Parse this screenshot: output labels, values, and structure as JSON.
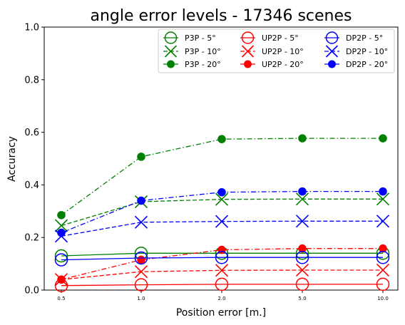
{
  "colors": {
    "P3P": "#008000",
    "UP2P": "#ff0000",
    "DP2P": "#0000ff",
    "axis": "#000000",
    "background": "#ffffff"
  },
  "chart_data": {
    "type": "line",
    "title": "angle error levels - 17346 scenes",
    "xlabel": "Position error [m.]",
    "ylabel": "Accuracy",
    "x": [
      "0.5",
      "1.0",
      "2.0",
      "5.0",
      "10.0"
    ],
    "x_scale": "categorical (evenly spaced)",
    "ylim": [
      0.0,
      1.0
    ],
    "yticks": [
      "0.0",
      "0.2",
      "0.4",
      "0.6",
      "0.8",
      "1.0"
    ],
    "grid": false,
    "legend": {
      "placement": "top-right",
      "columns": 3
    },
    "series": [
      {
        "name": "P3P - 5°",
        "method": "P3P",
        "angle": "5°",
        "color": "#008000",
        "linestyle": "solid",
        "marker": "open-circle",
        "values": [
          0.13,
          0.14,
          0.14,
          0.14,
          0.14
        ]
      },
      {
        "name": "P3P - 10°",
        "method": "P3P",
        "angle": "10°",
        "color": "#008000",
        "linestyle": "dashed",
        "marker": "x",
        "values": [
          0.245,
          0.336,
          0.345,
          0.346,
          0.346
        ]
      },
      {
        "name": "P3P - 20°",
        "method": "P3P",
        "angle": "20°",
        "color": "#008000",
        "linestyle": "dash-dot",
        "marker": "filled-circle",
        "values": [
          0.285,
          0.507,
          0.574,
          0.577,
          0.577
        ]
      },
      {
        "name": "UP2P - 5°",
        "method": "UP2P",
        "angle": "5°",
        "color": "#ff0000",
        "linestyle": "solid",
        "marker": "open-circle",
        "values": [
          0.017,
          0.02,
          0.022,
          0.022,
          0.022
        ]
      },
      {
        "name": "UP2P - 10°",
        "method": "UP2P",
        "angle": "10°",
        "color": "#ff0000",
        "linestyle": "dashed",
        "marker": "x",
        "values": [
          0.04,
          0.07,
          0.075,
          0.076,
          0.076
        ]
      },
      {
        "name": "UP2P - 20°",
        "method": "UP2P",
        "angle": "20°",
        "color": "#ff0000",
        "linestyle": "dash-dot",
        "marker": "filled-circle",
        "values": [
          0.04,
          0.115,
          0.153,
          0.158,
          0.158
        ]
      },
      {
        "name": "DP2P - 5°",
        "method": "DP2P",
        "angle": "5°",
        "color": "#0000ff",
        "linestyle": "solid",
        "marker": "open-circle",
        "values": [
          0.115,
          0.122,
          0.124,
          0.124,
          0.124
        ]
      },
      {
        "name": "DP2P - 10°",
        "method": "DP2P",
        "angle": "10°",
        "color": "#0000ff",
        "linestyle": "dashed",
        "marker": "x",
        "values": [
          0.205,
          0.258,
          0.261,
          0.262,
          0.262
        ]
      },
      {
        "name": "DP2P - 20°",
        "method": "DP2P",
        "angle": "20°",
        "color": "#0000ff",
        "linestyle": "dash-dot",
        "marker": "filled-circle",
        "values": [
          0.218,
          0.34,
          0.372,
          0.375,
          0.375
        ]
      }
    ]
  }
}
